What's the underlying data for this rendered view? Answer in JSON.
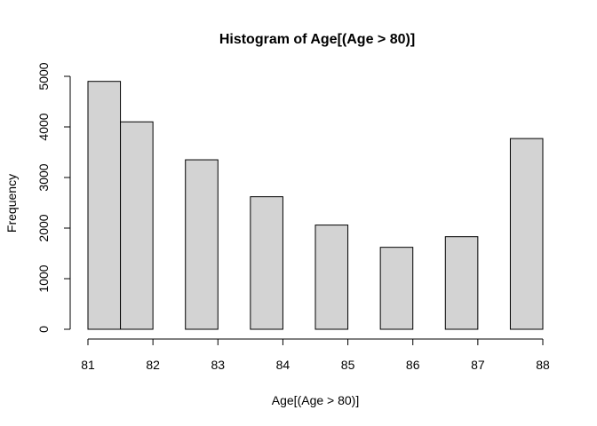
{
  "chart_data": {
    "type": "bar",
    "title": "Histogram of Age[(Age > 80)]",
    "xlabel": "Age[(Age > 80)]",
    "ylabel": "Frequency",
    "bins": [
      {
        "start": 81.0,
        "end": 81.5,
        "value": 4900
      },
      {
        "start": 81.5,
        "end": 82.0,
        "value": 4100
      },
      {
        "start": 82.5,
        "end": 83.0,
        "value": 3350
      },
      {
        "start": 83.5,
        "end": 84.0,
        "value": 2620
      },
      {
        "start": 84.5,
        "end": 85.0,
        "value": 2060
      },
      {
        "start": 85.5,
        "end": 86.0,
        "value": 1620
      },
      {
        "start": 86.5,
        "end": 87.0,
        "value": 1830
      },
      {
        "start": 87.5,
        "end": 88.0,
        "value": 3770
      }
    ],
    "xlim": [
      81,
      88
    ],
    "ylim": [
      0,
      5000
    ],
    "x_ticks": [
      "81",
      "82",
      "83",
      "84",
      "85",
      "86",
      "87",
      "88"
    ],
    "y_ticks": [
      "0",
      "1000",
      "2000",
      "3000",
      "4000",
      "5000"
    ],
    "grid": false,
    "bar_color": "#d3d3d3"
  }
}
